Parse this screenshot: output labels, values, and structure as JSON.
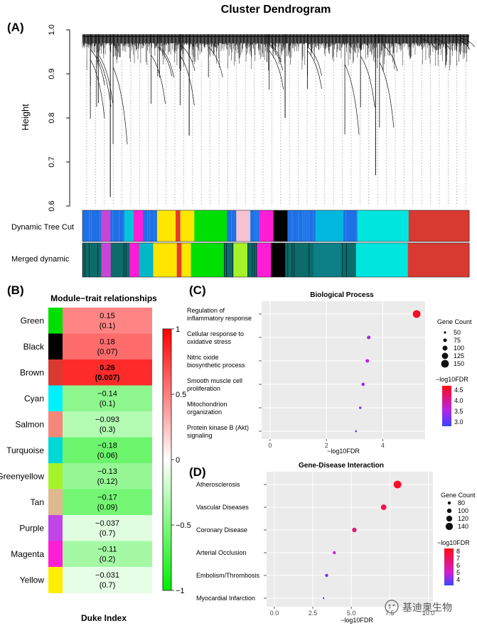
{
  "figure": {
    "watermark": "基迪奥生物"
  },
  "chart_data": [
    {
      "panel": "(A)",
      "type": "dendrogram",
      "title": "Cluster Dendrogram",
      "ylabel": "Height",
      "ylim": [
        0.6,
        1.0
      ],
      "yticks": [
        "0.6",
        "0.7",
        "0.8",
        "0.9",
        "1.0"
      ],
      "main_branches": [
        {
          "from": 0.0,
          "to": 0.12,
          "min_height": 0.62
        },
        {
          "from": 0.12,
          "to": 0.38,
          "min_height": 0.76
        },
        {
          "from": 0.38,
          "to": 0.62,
          "min_height": 0.8
        },
        {
          "from": 0.62,
          "to": 0.85,
          "min_height": 0.67
        },
        {
          "from": 0.85,
          "to": 1.0,
          "min_height": 0.92
        }
      ],
      "tracks": [
        {
          "label": "Dynamic Tree Cut",
          "colors": [
            [
              "#1f6fe5",
              0.04
            ],
            [
              "#c845d6",
              0.02
            ],
            [
              "#1f6fe5",
              0.03
            ],
            [
              "#00c8d8",
              0.02
            ],
            [
              "#ff1dd6",
              0.02
            ],
            [
              "#1f6fe5",
              0.03
            ],
            [
              "#ffe600",
              0.04
            ],
            [
              "#e43b2e",
              0.01
            ],
            [
              "#ffe600",
              0.03
            ],
            [
              "#00e000",
              0.07
            ],
            [
              "#1f6fe5",
              0.02
            ],
            [
              "#f7c3d0",
              0.03
            ],
            [
              "#1f6fe5",
              0.02
            ],
            [
              "#ff1dd6",
              0.03
            ],
            [
              "#000000",
              0.03
            ],
            [
              "#1f6fe5",
              0.06
            ],
            [
              "#00b7e0",
              0.06
            ],
            [
              "#1f6fe5",
              0.03
            ],
            [
              "#00e6de",
              0.11
            ],
            [
              "#d83a32",
              0.13
            ]
          ]
        },
        {
          "label": "Merged dynamic",
          "colors": [
            [
              "#0c6b6b",
              0.04
            ],
            [
              "#c845d6",
              0.02
            ],
            [
              "#0c6b6b",
              0.04
            ],
            [
              "#ff1dd6",
              0.02
            ],
            [
              "#00b7c8",
              0.03
            ],
            [
              "#ffe600",
              0.05
            ],
            [
              "#e43b2e",
              0.01
            ],
            [
              "#ffe600",
              0.02
            ],
            [
              "#00e000",
              0.07
            ],
            [
              "#0c6b6b",
              0.02
            ],
            [
              "#a6f32a",
              0.03
            ],
            [
              "#0c6b6b",
              0.02
            ],
            [
              "#ff1dd6",
              0.03
            ],
            [
              "#000000",
              0.03
            ],
            [
              "#0c6b6b",
              0.06
            ],
            [
              "#0c7f87",
              0.06
            ],
            [
              "#0c6b6b",
              0.03
            ],
            [
              "#00e6de",
              0.11
            ],
            [
              "#d83a32",
              0.13
            ]
          ]
        }
      ]
    },
    {
      "panel": "(B)",
      "type": "heatmap",
      "title": "Module−trait relationships",
      "xlabel": "Duke Index",
      "modules": [
        {
          "name": "Green",
          "color": "#00e000",
          "cor": "0.15",
          "p": "(0.1)",
          "bold": false,
          "value": 0.15
        },
        {
          "name": "Black",
          "color": "#000000",
          "cor": "0.18",
          "p": "(0.07)",
          "bold": false,
          "value": 0.18
        },
        {
          "name": "Brown",
          "color": "#d83a32",
          "cor": "0.26",
          "p": "(0.007)",
          "bold": true,
          "value": 0.26
        },
        {
          "name": "Cyan",
          "color": "#00f0ff",
          "cor": "−0.14",
          "p": "(0.1)",
          "bold": false,
          "value": -0.14
        },
        {
          "name": "Salmon",
          "color": "#f5877a",
          "cor": "−0.093",
          "p": "(0.3)",
          "bold": false,
          "value": -0.093
        },
        {
          "name": "Turquoise",
          "color": "#00d8d8",
          "cor": "−0.18",
          "p": "(0.06)",
          "bold": false,
          "value": -0.18
        },
        {
          "name": "Greenyellow",
          "color": "#a6f32a",
          "cor": "−0.13",
          "p": "(0.12)",
          "bold": false,
          "value": -0.13
        },
        {
          "name": "Tan",
          "color": "#e0b890",
          "cor": "−0.17",
          "p": "(0.09)",
          "bold": false,
          "value": -0.17
        },
        {
          "name": "Purple",
          "color": "#bf45e8",
          "cor": "−0.037",
          "p": "(0.7)",
          "bold": false,
          "value": -0.037
        },
        {
          "name": "Magenta",
          "color": "#ff1dd6",
          "cor": "−0.11",
          "p": "(0.2)",
          "bold": false,
          "value": -0.11
        },
        {
          "name": "Yellow",
          "color": "#ffee00",
          "cor": "−0.031",
          "p": "(0.7)",
          "bold": false,
          "value": -0.031
        }
      ],
      "scale_ticks": [
        "1",
        "0.5",
        "0",
        "−0.5",
        "−1"
      ],
      "scale_range": [
        -1,
        1
      ]
    },
    {
      "panel": "(C)",
      "type": "scatter",
      "title": "Biological Process",
      "xlabel": "−log10FDR",
      "xlim": [
        -0.3,
        5.5
      ],
      "xticks": [
        0,
        2,
        4
      ],
      "categories": [
        "Regulation of\ninflammatory response",
        "Cellular response to\noxidative stress",
        "Nitric oxide\nbiosynthetic process",
        "Smooth muscle cell\nproliferation",
        "Mitochondrion\norganization",
        "Protein kinase B (Akt)\nsignaling"
      ],
      "points": [
        {
          "x": 5.2,
          "count": 150,
          "fdr": 4.6
        },
        {
          "x": 3.5,
          "count": 75,
          "fdr": 3.5
        },
        {
          "x": 3.45,
          "count": 75,
          "fdr": 3.6
        },
        {
          "x": 3.3,
          "count": 70,
          "fdr": 3.4
        },
        {
          "x": 3.2,
          "count": 55,
          "fdr": 3.2
        },
        {
          "x": 3.05,
          "count": 45,
          "fdr": 3.0
        }
      ],
      "size_legend": {
        "title": "Gene Count",
        "values": [
          50,
          75,
          100,
          125,
          150
        ],
        "range": [
          40,
          150
        ]
      },
      "color_legend": {
        "title": "−log10FDR",
        "ticks": [
          4.5,
          4.0,
          3.5,
          3.0
        ],
        "range": [
          2.8,
          4.7
        ]
      }
    },
    {
      "panel": "(D)",
      "type": "scatter",
      "title": "Gene-Disease Interaction",
      "xlabel": "−log10FDR",
      "xlim": [
        -0.5,
        10.3
      ],
      "xticks": [
        0.0,
        2.5,
        5.0,
        7.5,
        10.0
      ],
      "tick_labels": [
        "0.0",
        "2.5",
        "5.0",
        "7.5",
        "10.0"
      ],
      "categories": [
        "Atherosclerosis",
        "Vascular Diseases",
        "Coronary Disease",
        "Arterial Occlusion",
        "Embolism/Thrombosis",
        "Myocardial Infarction"
      ],
      "points": [
        {
          "x": 8.0,
          "count": 145,
          "fdr": 8.0
        },
        {
          "x": 7.1,
          "count": 115,
          "fdr": 7.3
        },
        {
          "x": 5.2,
          "count": 100,
          "fdr": 6.5
        },
        {
          "x": 3.9,
          "count": 80,
          "fdr": 5.0
        },
        {
          "x": 3.4,
          "count": 80,
          "fdr": 3.8
        },
        {
          "x": 3.2,
          "count": 60,
          "fdr": 3.4
        }
      ],
      "size_legend": {
        "title": "Gene Count",
        "values": [
          80,
          100,
          120,
          140
        ],
        "range": [
          60,
          145
        ]
      },
      "color_legend": {
        "title": "−log10FDR",
        "ticks": [
          8,
          7,
          6,
          5,
          4
        ],
        "range": [
          3.2,
          8.4
        ]
      }
    }
  ]
}
